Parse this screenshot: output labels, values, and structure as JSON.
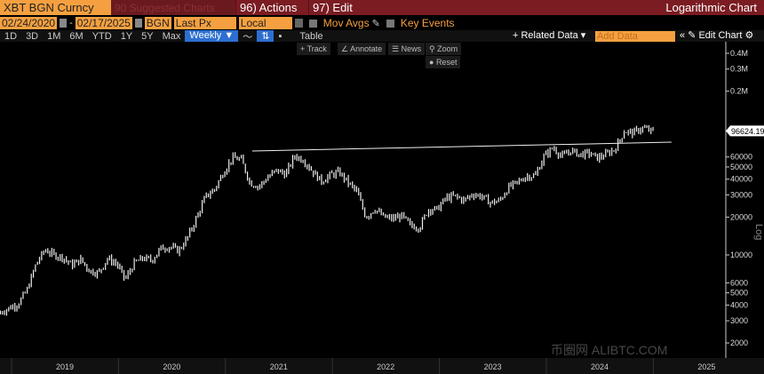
{
  "header": {
    "ticker": "XBT BGN Curncy",
    "suggested": "90 Suggested Charts",
    "actions": "96) Actions",
    "edit": "97) Edit",
    "title": "Logarithmic Chart"
  },
  "controls": {
    "start_date": "02/24/2020",
    "end_date": "02/17/2025",
    "source": "BGN",
    "field": "Last Px",
    "currency": "Local CCY",
    "mov_avgs": "Mov Avgs",
    "key_events": "Key Events"
  },
  "periods": [
    "1D",
    "3D",
    "1M",
    "6M",
    "YTD",
    "1Y",
    "5Y",
    "Max"
  ],
  "frequency": "Weekly ▼",
  "table_label": "Table",
  "related_data": "+ Related Data ▾",
  "add_data_placeholder": "Add Data",
  "edit_chart": "✎ Edit Chart",
  "tools": {
    "track": "+ Track",
    "annotate": "∠ Annotate",
    "news": "News",
    "zoom": "Zoom",
    "reset": "Reset"
  },
  "watermark": "币圈网 ALIBTC.COM",
  "chart_data": {
    "type": "line",
    "scale": "log",
    "y_axis_label": "Log",
    "yticks": [
      {
        "v": 400000,
        "label": "0.4M"
      },
      {
        "v": 300000,
        "label": "0.3M"
      },
      {
        "v": 200000,
        "label": "0.2M"
      },
      {
        "v": 60000,
        "label": "60000"
      },
      {
        "v": 50000,
        "label": "50000"
      },
      {
        "v": 40000,
        "label": "40000"
      },
      {
        "v": 30000,
        "label": "30000"
      },
      {
        "v": 20000,
        "label": "20000"
      },
      {
        "v": 10000,
        "label": "10000"
      },
      {
        "v": 6000,
        "label": "6000"
      },
      {
        "v": 5000,
        "label": "5000"
      },
      {
        "v": 4000,
        "label": "4000"
      },
      {
        "v": 3000,
        "label": "3000"
      },
      {
        "v": 2000,
        "label": "2000"
      }
    ],
    "xticks": [
      "2019",
      "2020",
      "2021",
      "2022",
      "2023",
      "2024",
      "2025"
    ],
    "last_price": 96624.19,
    "last_price_label": "96624.19",
    "trendline": {
      "start": [
        "2021-04",
        67000
      ],
      "end": [
        "2025-03",
        78700
      ]
    },
    "monthly_close": [
      3500,
      3800,
      4100,
      5300,
      8500,
      11000,
      10000,
      9600,
      8300,
      9200,
      7500,
      7200,
      9350,
      8600,
      6400,
      8600,
      9450,
      9100,
      11300,
      11650,
      10800,
      13800,
      19700,
      29000,
      33100,
      45200,
      58800,
      57700,
      37300,
      35000,
      41500,
      47100,
      43800,
      61300,
      57000,
      46300,
      38500,
      43200,
      45500,
      37700,
      31800,
      19900,
      23300,
      20000,
      19400,
      20500,
      17200,
      16500,
      23100,
      23100,
      28500,
      29300,
      27200,
      30500,
      29200,
      26000,
      27000,
      34500,
      37700,
      42300,
      42600,
      61200,
      71300,
      60600,
      67500,
      62700,
      64600,
      59000,
      63300,
      70200,
      96400,
      93400,
      102400,
      96624
    ],
    "series_start": "2019-01",
    "grid": false,
    "legend": "none"
  }
}
